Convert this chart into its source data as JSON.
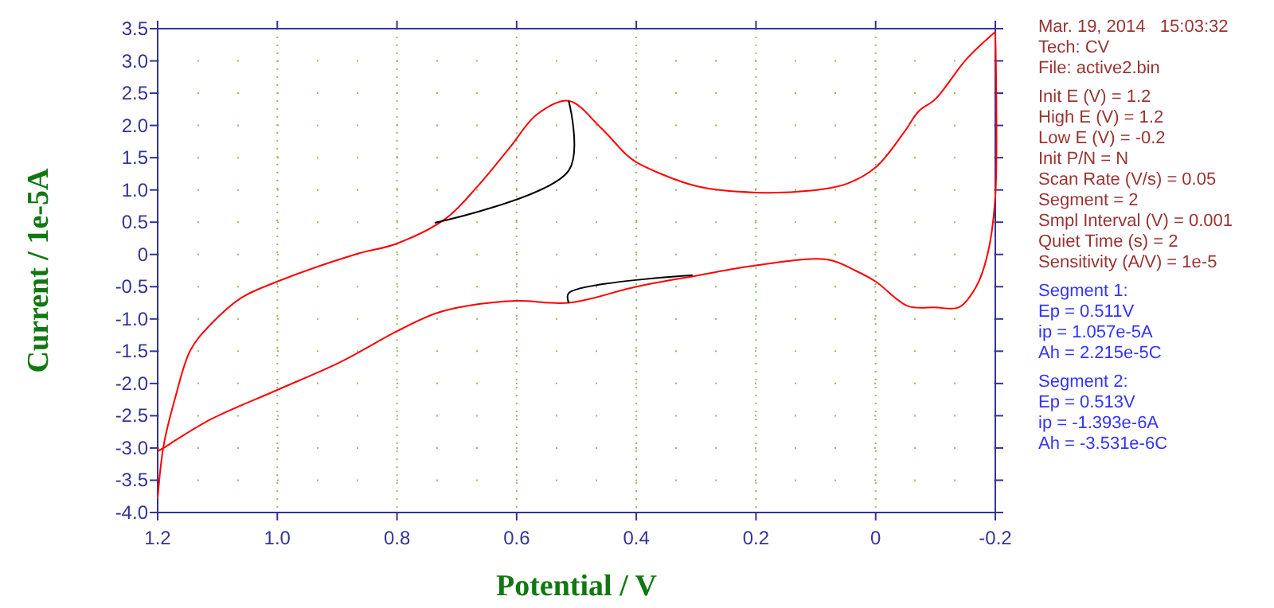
{
  "chart_data": {
    "type": "line",
    "xlabel": "Potential / V",
    "ylabel": "Current / 1e-5A",
    "xlim": [
      1.2,
      -0.2
    ],
    "ylim": [
      -4.0,
      3.5
    ],
    "xticks": [
      {
        "value": 1.2,
        "label": "1.2"
      },
      {
        "value": 1.0,
        "label": "1.0"
      },
      {
        "value": 0.8,
        "label": "0.8"
      },
      {
        "value": 0.6,
        "label": "0.6"
      },
      {
        "value": 0.4,
        "label": "0.4"
      },
      {
        "value": 0.2,
        "label": "0.2"
      },
      0,
      -0.2
    ],
    "yticks": [
      3.5,
      {
        "value": 3,
        "label": "3.0"
      },
      2.5,
      {
        "value": 2,
        "label": "2.0"
      },
      1.5,
      {
        "value": 1,
        "label": "1.0"
      },
      0.5,
      0,
      -0.5,
      {
        "value": -1,
        "label": "-1.0"
      },
      -1.5,
      {
        "value": -2,
        "label": "-2.0"
      },
      -2.5,
      {
        "value": -3,
        "label": "-3.0"
      },
      -3.5,
      {
        "value": -4,
        "label": "-4.0"
      }
    ],
    "grid": true,
    "marker": "none",
    "line_style": "solid",
    "series": [
      {
        "color": "#ff0000",
        "x": [
          -0.2,
          -0.152,
          -0.1,
          -0.072,
          -0.048,
          0.0,
          0.047,
          0.098,
          0.2,
          0.3,
          0.4,
          0.417,
          0.46,
          0.513,
          0.566,
          0.612,
          0.665,
          0.718,
          0.8,
          0.87,
          1.0,
          1.06,
          1.11,
          1.145,
          1.17,
          1.19,
          1.2
        ],
        "values": [
          3.45,
          3.03,
          2.41,
          2.22,
          1.9,
          1.35,
          1.1,
          1.0,
          0.96,
          1.06,
          1.43,
          1.55,
          1.97,
          2.38,
          2.17,
          1.65,
          1.06,
          0.56,
          0.17,
          0.0,
          -0.42,
          -0.67,
          -1.07,
          -1.48,
          -2.2,
          -2.96,
          -3.78
        ]
      },
      {
        "color": "#ff0000",
        "x": [
          1.2,
          1.19,
          1.17,
          1.11,
          1.0,
          0.893,
          0.8,
          0.737,
          0.684,
          0.6,
          0.513,
          0.4,
          0.3,
          0.2,
          0.08,
          0.034,
          0.0,
          -0.054,
          -0.099,
          -0.139,
          -0.168,
          -0.187,
          -0.2,
          -0.2
        ],
        "values": [
          -3.05,
          -3.0,
          -2.88,
          -2.55,
          -2.1,
          -1.66,
          -1.19,
          -0.92,
          -0.8,
          -0.72,
          -0.75,
          -0.5,
          -0.33,
          -0.17,
          -0.08,
          -0.25,
          -0.42,
          -0.8,
          -0.82,
          -0.82,
          -0.5,
          0.0,
          0.9,
          3.45
        ]
      },
      {
        "color": "#000000",
        "x": [
          0.737,
          0.513,
          0.513
        ],
        "values": [
          0.49,
          1.3,
          2.38
        ]
      },
      {
        "color": "#000000",
        "x": [
          0.513,
          0.513,
          0.306
        ],
        "values": [
          -0.75,
          -0.6,
          -0.32
        ]
      }
    ],
    "annotations": [
      "Mar. 19, 2014   15:03:32",
      "Tech: CV",
      "File: active2.bin",
      "Init E (V) = 1.2",
      "High E (V) = 1.2",
      "Low E (V) = -0.2",
      "Init P/N = N",
      "Scan Rate (V/s) = 0.05",
      "Segment = 2",
      "Smpl Interval (V) = 0.001",
      "Quiet Time (s) = 2",
      "Sensitivity (A/V) = 1e-5",
      "Segment 1:",
      "Ep = 0.511V",
      "ip = 1.057e-5A",
      "Ah = 2.215e-5C",
      "Segment 2:",
      "Ep = 0.513V",
      "ip = -1.393e-6A",
      "Ah = -3.531e-6C"
    ]
  }
}
